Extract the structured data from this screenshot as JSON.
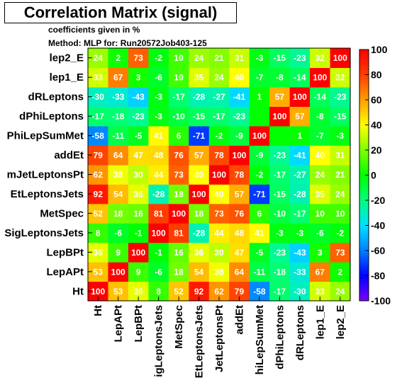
{
  "chart_data": {
    "type": "heatmap",
    "title": "Correlation Matrix (signal)",
    "subtitle": "coefficients given in %",
    "method_text": "Method: MLP for: Run20572Job403-125",
    "variables": [
      "Ht",
      "LepAPt",
      "LepBPt",
      "SigLeptonsJets",
      "MetSpec",
      "EtLeptonsJets",
      "SumJetLeptonsPt",
      "addEt",
      "dPhiLepSumMet",
      "dPhiLeptons",
      "dRLeptons",
      "lep1_E",
      "lep2_E"
    ],
    "y_labels_shown": [
      "Ht",
      "LepAPt",
      "LepBPt",
      "SigLeptonsJets",
      "MetSpec",
      "EtLeptonsJets",
      "mJetLeptonsPt",
      "addEt",
      "PhiLepSumMet",
      "dPhiLeptons",
      "dRLeptons",
      "lep1_E",
      "lep2_E"
    ],
    "x_labels_shown": [
      "Ht",
      "LepAPt",
      "LepBPt",
      "igLeptonsJets",
      "MetSpec",
      "EtLeptonsJets",
      "JetLeptonsPt",
      "addEt",
      "hiLepSumMet",
      "dPhiLeptons",
      "dRLeptons",
      "lep1_E",
      "lep2_E"
    ],
    "matrix": [
      [
        100,
        53,
        36,
        8,
        52,
        92,
        62,
        79,
        -58,
        -17,
        -30,
        33,
        24
      ],
      [
        53,
        100,
        9,
        -6,
        18,
        54,
        38,
        64,
        -11,
        -18,
        -33,
        67,
        2
      ],
      [
        36,
        9,
        100,
        -1,
        16,
        36,
        30,
        47,
        -5,
        -23,
        -43,
        3,
        73
      ],
      [
        8,
        -6,
        -1,
        100,
        81,
        -28,
        44,
        48,
        41,
        -3,
        -3,
        -6,
        -2
      ],
      [
        52,
        18,
        16,
        81,
        100,
        18,
        73,
        76,
        6,
        -10,
        -17,
        10,
        10
      ],
      [
        92,
        54,
        36,
        -28,
        18,
        100,
        40,
        57,
        -71,
        -15,
        -28,
        35,
        24
      ],
      [
        62,
        38,
        30,
        44,
        73,
        40,
        100,
        78,
        -2,
        -17,
        -27,
        24,
        21
      ],
      [
        79,
        64,
        47,
        48,
        76,
        57,
        78,
        100,
        -9,
        -23,
        -41,
        40,
        31
      ],
      [
        -58,
        -11,
        -5,
        41,
        6,
        -71,
        -2,
        -9,
        100,
        0,
        1,
        -7,
        -3
      ],
      [
        -17,
        -18,
        -23,
        -3,
        -10,
        -15,
        -17,
        -23,
        0,
        100,
        57,
        -8,
        -15
      ],
      [
        -30,
        -33,
        -43,
        -3,
        -17,
        -28,
        -27,
        -41,
        1,
        57,
        100,
        -14,
        -23
      ],
      [
        33,
        67,
        3,
        -6,
        10,
        35,
        24,
        40,
        -7,
        -8,
        -14,
        100,
        32
      ],
      [
        24,
        2,
        73,
        -2,
        10,
        24,
        21,
        31,
        -3,
        -15,
        -23,
        32,
        100
      ]
    ],
    "hidden_labels": [
      [
        8,
        9
      ],
      [
        9,
        8
      ]
    ],
    "zlim": [
      -100,
      100
    ],
    "palette_ticks": [
      100,
      80,
      60,
      40,
      20,
      0,
      -20,
      -40,
      -60,
      -80,
      -100
    ],
    "palette_colors": [
      "#7f00ff",
      "#0000ff",
      "#007fff",
      "#00dfff",
      "#00ff7f",
      "#00ff00",
      "#7fff00",
      "#ffff00",
      "#ff9f00",
      "#ff3f00",
      "#ff0000"
    ]
  }
}
